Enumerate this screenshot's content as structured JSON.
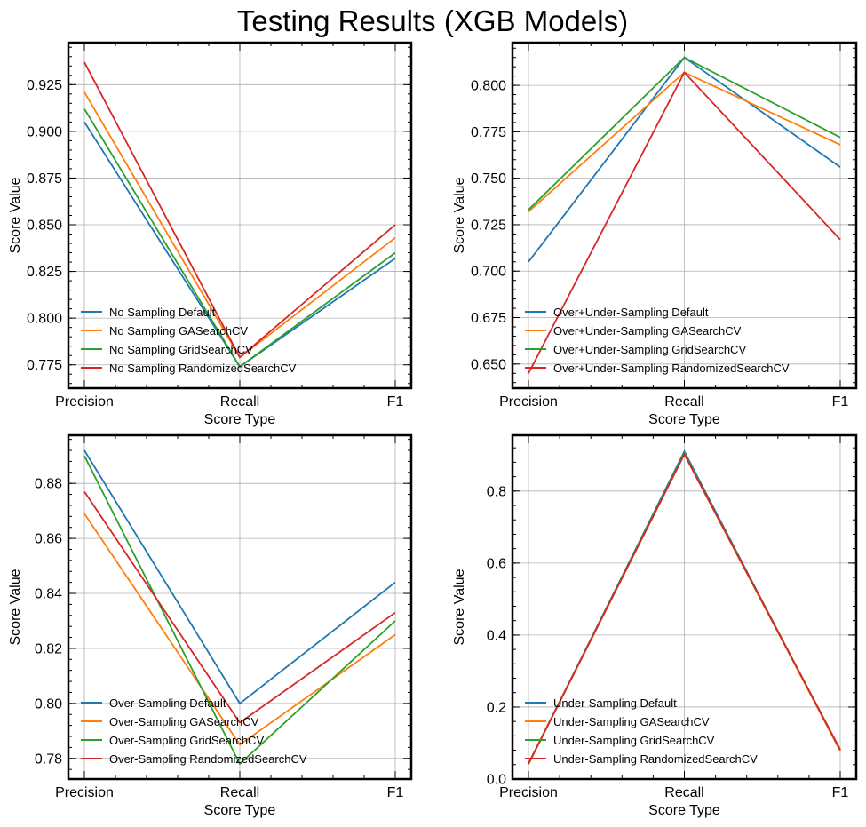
{
  "figure": {
    "title": "Testing Results (XGB Models)"
  },
  "chart_data": [
    {
      "type": "line",
      "categories": [
        "Precision",
        "Recall",
        "F1"
      ],
      "xlabel": "Score Type",
      "ylabel": "Score Value",
      "ylim": [
        0.7625,
        0.9475
      ],
      "yticks": [
        0.775,
        0.8,
        0.825,
        0.85,
        0.875,
        0.9,
        0.925
      ],
      "ytick_labels": [
        "0.775",
        "0.800",
        "0.825",
        "0.850",
        "0.875",
        "0.900",
        "0.925"
      ],
      "grid": true,
      "legend_position": "lower-left",
      "series": [
        {
          "name": "No Sampling Default",
          "color": "#1f77b4",
          "values": [
            0.905,
            0.774,
            0.832
          ]
        },
        {
          "name": "No Sampling GASearchCV",
          "color": "#ff7f0e",
          "values": [
            0.921,
            0.779,
            0.843
          ]
        },
        {
          "name": "No Sampling GridSearchCV",
          "color": "#2ca02c",
          "values": [
            0.912,
            0.774,
            0.835
          ]
        },
        {
          "name": "No Sampling RandomizedSearchCV",
          "color": "#d62728",
          "values": [
            0.937,
            0.779,
            0.85
          ]
        }
      ]
    },
    {
      "type": "line",
      "categories": [
        "Precision",
        "Recall",
        "F1"
      ],
      "xlabel": "Score Type",
      "ylabel": "Score Value",
      "ylim": [
        0.637,
        0.823
      ],
      "yticks": [
        0.65,
        0.675,
        0.7,
        0.725,
        0.75,
        0.775,
        0.8
      ],
      "ytick_labels": [
        "0.650",
        "0.675",
        "0.700",
        "0.725",
        "0.750",
        "0.775",
        "0.800"
      ],
      "grid": true,
      "legend_position": "lower-left",
      "series": [
        {
          "name": "Over+Under-Sampling Default",
          "color": "#1f77b4",
          "values": [
            0.705,
            0.815,
            0.756
          ]
        },
        {
          "name": "Over+Under-Sampling GASearchCV",
          "color": "#ff7f0e",
          "values": [
            0.732,
            0.807,
            0.768
          ]
        },
        {
          "name": "Over+Under-Sampling GridSearchCV",
          "color": "#2ca02c",
          "values": [
            0.733,
            0.815,
            0.772
          ]
        },
        {
          "name": "Over+Under-Sampling RandomizedSearchCV",
          "color": "#d62728",
          "values": [
            0.645,
            0.807,
            0.717
          ]
        }
      ]
    },
    {
      "type": "line",
      "categories": [
        "Precision",
        "Recall",
        "F1"
      ],
      "xlabel": "Score Type",
      "ylabel": "Score Value",
      "ylim": [
        0.7725,
        0.8975
      ],
      "yticks": [
        0.78,
        0.8,
        0.82,
        0.84,
        0.86,
        0.88
      ],
      "ytick_labels": [
        "0.78",
        "0.80",
        "0.82",
        "0.84",
        "0.86",
        "0.88"
      ],
      "grid": true,
      "legend_position": "lower-left",
      "series": [
        {
          "name": "Over-Sampling Default",
          "color": "#1f77b4",
          "values": [
            0.892,
            0.8,
            0.844
          ]
        },
        {
          "name": "Over-Sampling GASearchCV",
          "color": "#ff7f0e",
          "values": [
            0.869,
            0.785,
            0.825
          ]
        },
        {
          "name": "Over-Sampling GridSearchCV",
          "color": "#2ca02c",
          "values": [
            0.89,
            0.778,
            0.83
          ]
        },
        {
          "name": "Over-Sampling RandomizedSearchCV",
          "color": "#d62728",
          "values": [
            0.877,
            0.793,
            0.833
          ]
        }
      ]
    },
    {
      "type": "line",
      "categories": [
        "Precision",
        "Recall",
        "F1"
      ],
      "xlabel": "Score Type",
      "ylabel": "Score Value",
      "ylim": [
        0.0,
        0.955
      ],
      "yticks": [
        0.0,
        0.2,
        0.4,
        0.6,
        0.8
      ],
      "ytick_labels": [
        "0.0",
        "0.2",
        "0.4",
        "0.6",
        "0.8"
      ],
      "grid": true,
      "legend_position": "lower-left",
      "series": [
        {
          "name": "Under-Sampling Default",
          "color": "#1f77b4",
          "values": [
            0.041,
            0.91,
            0.078
          ]
        },
        {
          "name": "Under-Sampling GASearchCV",
          "color": "#ff7f0e",
          "values": [
            0.041,
            0.902,
            0.078
          ]
        },
        {
          "name": "Under-Sampling GridSearchCV",
          "color": "#2ca02c",
          "values": [
            0.043,
            0.905,
            0.081
          ]
        },
        {
          "name": "Under-Sampling RandomizedSearchCV",
          "color": "#d62728",
          "values": [
            0.043,
            0.902,
            0.082
          ]
        }
      ]
    }
  ]
}
